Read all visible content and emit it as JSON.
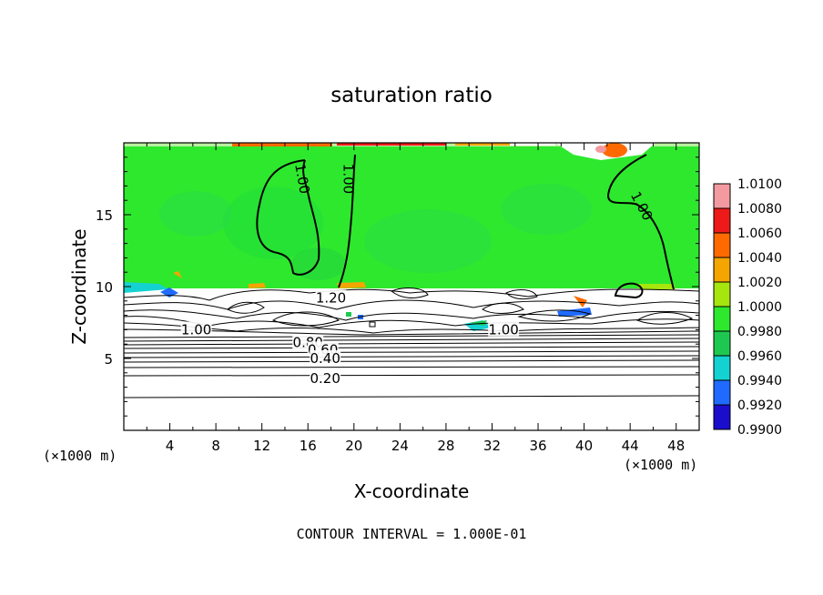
{
  "chart_data": {
    "type": "heatmap",
    "title": "saturation ratio",
    "xlabel": "X-coordinate",
    "ylabel": "Z-coordinate",
    "x_unit_left": "(×1000 m)",
    "x_unit_right": "(×1000 m)",
    "xlim": [
      0,
      50
    ],
    "ylim": [
      0,
      20
    ],
    "x_ticks": [
      4,
      8,
      12,
      16,
      20,
      24,
      28,
      32,
      36,
      40,
      44,
      48
    ],
    "x_tick_labels": [
      "4",
      "8",
      "12",
      "16",
      "20",
      "24",
      "28",
      "32",
      "36",
      "40",
      "44",
      "48"
    ],
    "y_ticks": [
      5,
      10,
      15
    ],
    "y_tick_labels": [
      "5",
      "10",
      "15"
    ],
    "colorbar": {
      "levels": [
        0.99,
        0.992,
        0.994,
        0.996,
        0.998,
        1.0,
        1.002,
        1.004,
        1.006,
        1.008,
        1.01
      ],
      "labels": [
        "0.9900",
        "0.9920",
        "0.9940",
        "0.9960",
        "0.9980",
        "1.0000",
        "1.0020",
        "1.0040",
        "1.0060",
        "1.0080",
        "1.0100"
      ],
      "colors": [
        "#5a189a",
        "#1a0dcc",
        "#1f6bff",
        "#14d2d2",
        "#1ec850",
        "#2ee82e",
        "#a6e60e",
        "#f5a500",
        "#ff6a00",
        "#ee1a1a",
        "#f29aa0"
      ]
    },
    "contour_labels": [
      {
        "text": "1.00",
        "x": 15.5,
        "z": 17.5,
        "rotate": 80
      },
      {
        "text": "1.00",
        "x": 19.5,
        "z": 17.5,
        "rotate": 90
      },
      {
        "text": "1.00",
        "x": 45.0,
        "z": 15.6,
        "rotate": 62
      },
      {
        "text": "1.20",
        "x": 18.0,
        "z": 9.2,
        "rotate": 0
      },
      {
        "text": "1.00",
        "x": 6.3,
        "z": 7.0,
        "rotate": 0
      },
      {
        "text": "1.00",
        "x": 33.0,
        "z": 7.0,
        "rotate": 0
      },
      {
        "text": "0.80",
        "x": 16.0,
        "z": 6.1,
        "rotate": 0
      },
      {
        "text": "0.60",
        "x": 17.3,
        "z": 5.6,
        "rotate": 0
      },
      {
        "text": "0.40",
        "x": 17.5,
        "z": 5.0,
        "rotate": 0
      },
      {
        "text": "0.20",
        "x": 17.5,
        "z": 3.6,
        "rotate": 0
      }
    ],
    "horizontal_contours_z": [
      2.3,
      3.8,
      4.3,
      4.6,
      4.9,
      5.3,
      5.6,
      5.9,
      6.2
    ]
  },
  "footer": "CONTOUR INTERVAL = 1.000E-01"
}
